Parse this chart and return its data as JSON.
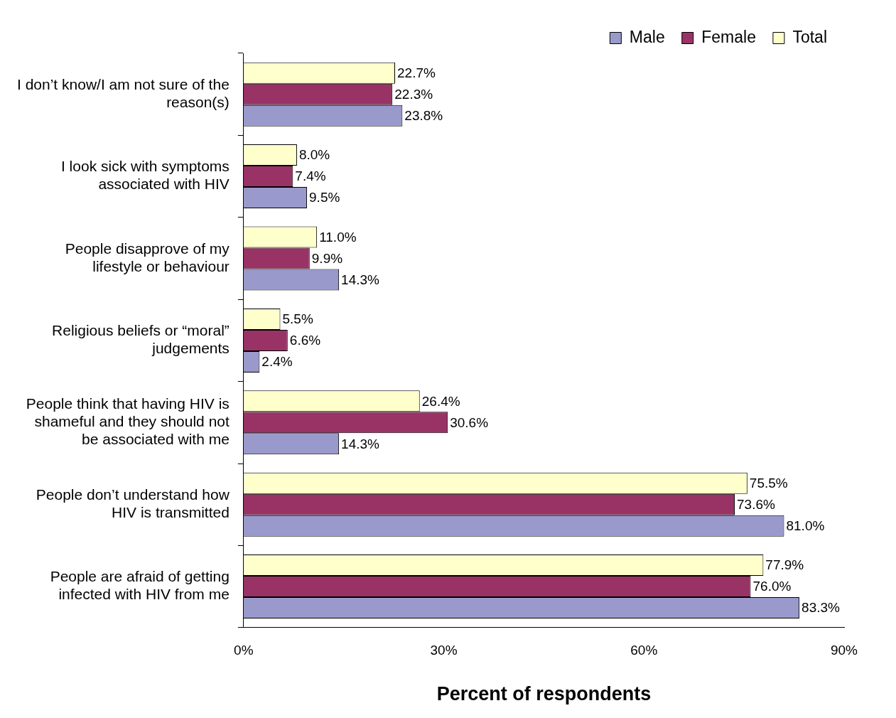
{
  "chart_data": {
    "type": "bar",
    "orientation": "horizontal",
    "xlabel": "Percent of respondents",
    "categories": [
      "I don’t know/I am not sure of the reason(s)",
      "I look sick with symptoms associated with HIV",
      "People disapprove of my lifestyle or behaviour",
      "Religious beliefs or “moral” judgements",
      "People think that having HIV is shameful and they should not be associated with me",
      "People don’t understand how HIV is transmitted",
      "People are afraid of getting infected with HIV from me"
    ],
    "series": [
      {
        "name": "Male",
        "color": "#9999cc",
        "values": [
          23.8,
          9.5,
          14.3,
          2.4,
          14.3,
          81.0,
          83.3
        ],
        "value_labels": [
          "23.8%",
          "9.5%",
          "14.3%",
          "2.4%",
          "14.3%",
          "81.0%",
          "83.3%"
        ]
      },
      {
        "name": "Female",
        "color": "#993366",
        "values": [
          22.3,
          7.4,
          9.9,
          6.6,
          30.6,
          73.6,
          76.0
        ],
        "value_labels": [
          "22.3%",
          "7.4%",
          "9.9%",
          "6.6%",
          "30.6%",
          "73.6%",
          "76.0%"
        ]
      },
      {
        "name": "Total",
        "color": "#ffffcc",
        "values": [
          22.7,
          8.0,
          11.0,
          5.5,
          26.4,
          75.5,
          77.9
        ],
        "value_labels": [
          "22.7%",
          "8.0%",
          "11.0%",
          "5.5%",
          "26.4%",
          "75.5%",
          "77.9%"
        ]
      }
    ],
    "xlim": [
      0,
      90
    ],
    "xticks": [
      {
        "value": 0,
        "label": "0%"
      },
      {
        "value": 30,
        "label": "30%"
      },
      {
        "value": 60,
        "label": "60%"
      },
      {
        "value": 90,
        "label": "90%"
      }
    ],
    "grid": false,
    "legend": "top right"
  }
}
